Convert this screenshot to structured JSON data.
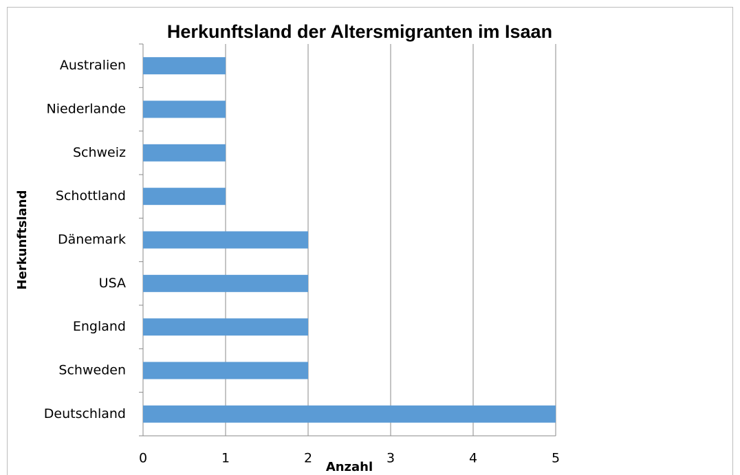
{
  "chart_data": {
    "type": "barh",
    "title": "Herkunftsland der Altersmigranten im Isaan",
    "x_label": "Anzahl",
    "y_label": "Herkunftsland",
    "categories": [
      "Australien",
      "Niederlande",
      "Schweiz",
      "Schottland",
      "Dänemark",
      "USA",
      "England",
      "Schweden",
      "Deutschland"
    ],
    "values": [
      1,
      1,
      1,
      1,
      2,
      2,
      2,
      2,
      5
    ],
    "color": "#5b9bd5",
    "xlim": [
      0,
      5
    ],
    "xticks": [
      0,
      1,
      2,
      3,
      4,
      5
    ],
    "grid": true
  }
}
